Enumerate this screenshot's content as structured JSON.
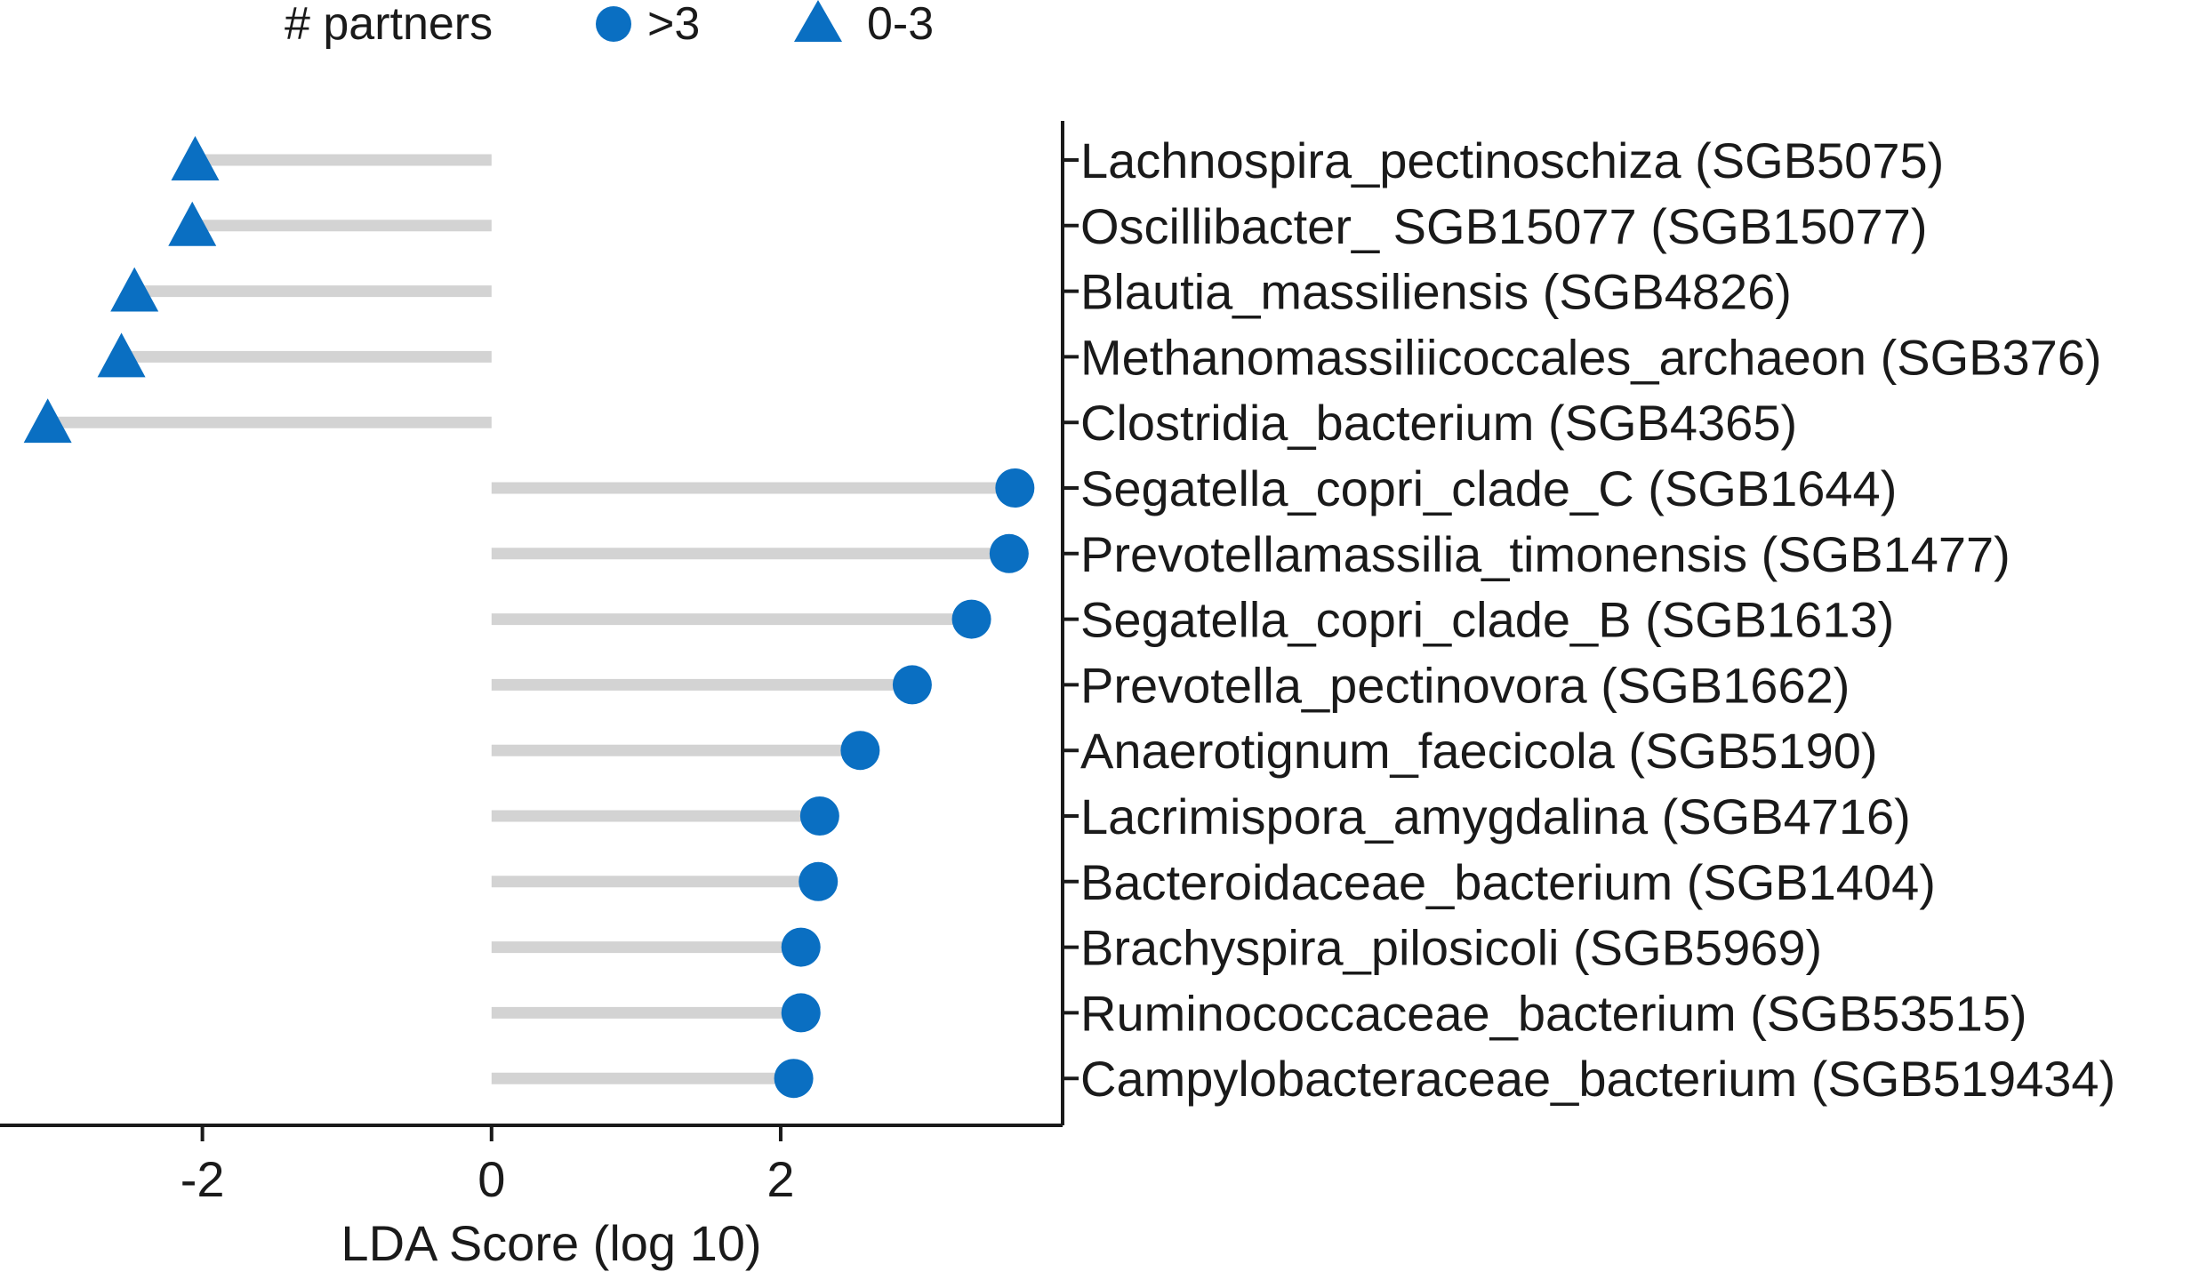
{
  "chart_data": {
    "type": "lollipop",
    "xlabel": "LDA Score (log 10)",
    "xlim": [
      -3.4,
      3.95
    ],
    "xticks": [
      -2,
      0,
      2
    ],
    "tick_labels": [
      "-2",
      "0",
      "2"
    ],
    "grid": false,
    "legend": {
      "title": "# partners",
      "placement": "top-left",
      "entries": [
        {
          "label": ">3",
          "marker": "circle"
        },
        {
          "label": "0-3",
          "marker": "triangle"
        }
      ]
    },
    "categories": [
      "Lachnospira_pectinoschiza (SGB5075)",
      "Oscillibacter_ SGB15077 (SGB15077)",
      "Blautia_massiliensis (SGB4826)",
      "Methanomassiliicoccales_archaeon (SGB376)",
      "Clostridia_bacterium (SGB4365)",
      "Segatella_copri_clade_C (SGB1644)",
      "Prevotellamassilia_timonensis (SGB1477)",
      "Segatella_copri_clade_B (SGB1613)",
      "Prevotella_pectinovora (SGB1662)",
      "Anaerotignum_faecicola (SGB5190)",
      "Lacrimispora_amygdalina (SGB4716)",
      "Bacteroidaceae_bacterium (SGB1404)",
      "Brachyspira_pilosicoli (SGB5969)",
      "Ruminococcaceae_bacterium (SGB53515)",
      "Campylobacteraceae_bacterium (SGB519434)"
    ],
    "values": [
      -2.05,
      -2.07,
      -2.47,
      -2.56,
      -3.07,
      3.62,
      3.58,
      3.32,
      2.91,
      2.55,
      2.27,
      2.26,
      2.14,
      2.14,
      2.09
    ],
    "partners": [
      "0-3",
      "0-3",
      "0-3",
      "0-3",
      "0-3",
      ">3",
      ">3",
      ">3",
      ">3",
      ">3",
      ">3",
      ">3",
      ">3",
      ">3",
      ">3"
    ],
    "colors": {
      "marker": "#0a6fc2",
      "stem": "#d3d3d3",
      "axis": "#1a1a1a",
      "text": "#1a1a1a"
    }
  }
}
